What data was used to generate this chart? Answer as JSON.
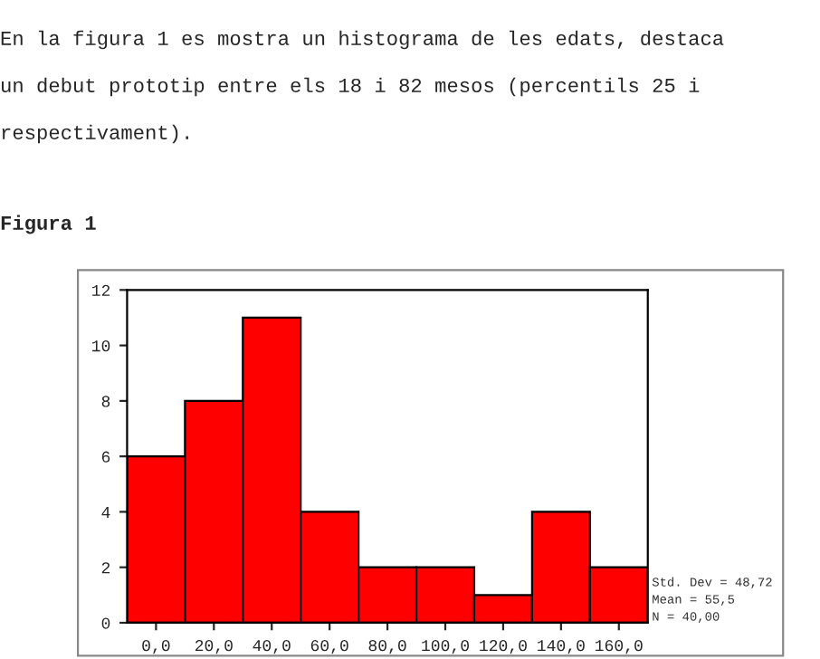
{
  "chart_data": {
    "type": "histogram",
    "title": "Figura 1",
    "annotations": [
      "En la figura 1 es mostra un histograma de les edats, destaca",
      "un debut prototip entre els 18 i 82 mesos (percentils 25 i",
      "respectivament).",
      "Std. Dev = 48,72",
      "Mean = 55,5",
      "N = 40,00"
    ],
    "bins": [
      -10,
      10,
      30,
      50,
      70,
      90,
      110,
      130,
      150,
      170
    ],
    "values": [
      6,
      8,
      11,
      4,
      2,
      2,
      1,
      4,
      2
    ],
    "color": "#ff0000",
    "xlim": [
      -10,
      170
    ],
    "xticks": [
      {
        "value": 0,
        "label": "0,0"
      },
      {
        "value": 20,
        "label": "20,0"
      },
      {
        "value": 40,
        "label": "40,0"
      },
      {
        "value": 60,
        "label": "60,0"
      },
      {
        "value": 80,
        "label": "80,0"
      },
      {
        "value": 100,
        "label": "100,0"
      },
      {
        "value": 120,
        "label": "120,0"
      },
      {
        "value": 140,
        "label": "140,0"
      },
      {
        "value": 160,
        "label": "160,0"
      }
    ],
    "ylim": [
      0,
      12
    ],
    "yticks": [
      0,
      2,
      4,
      6,
      8,
      10,
      12
    ],
    "grid": false
  }
}
